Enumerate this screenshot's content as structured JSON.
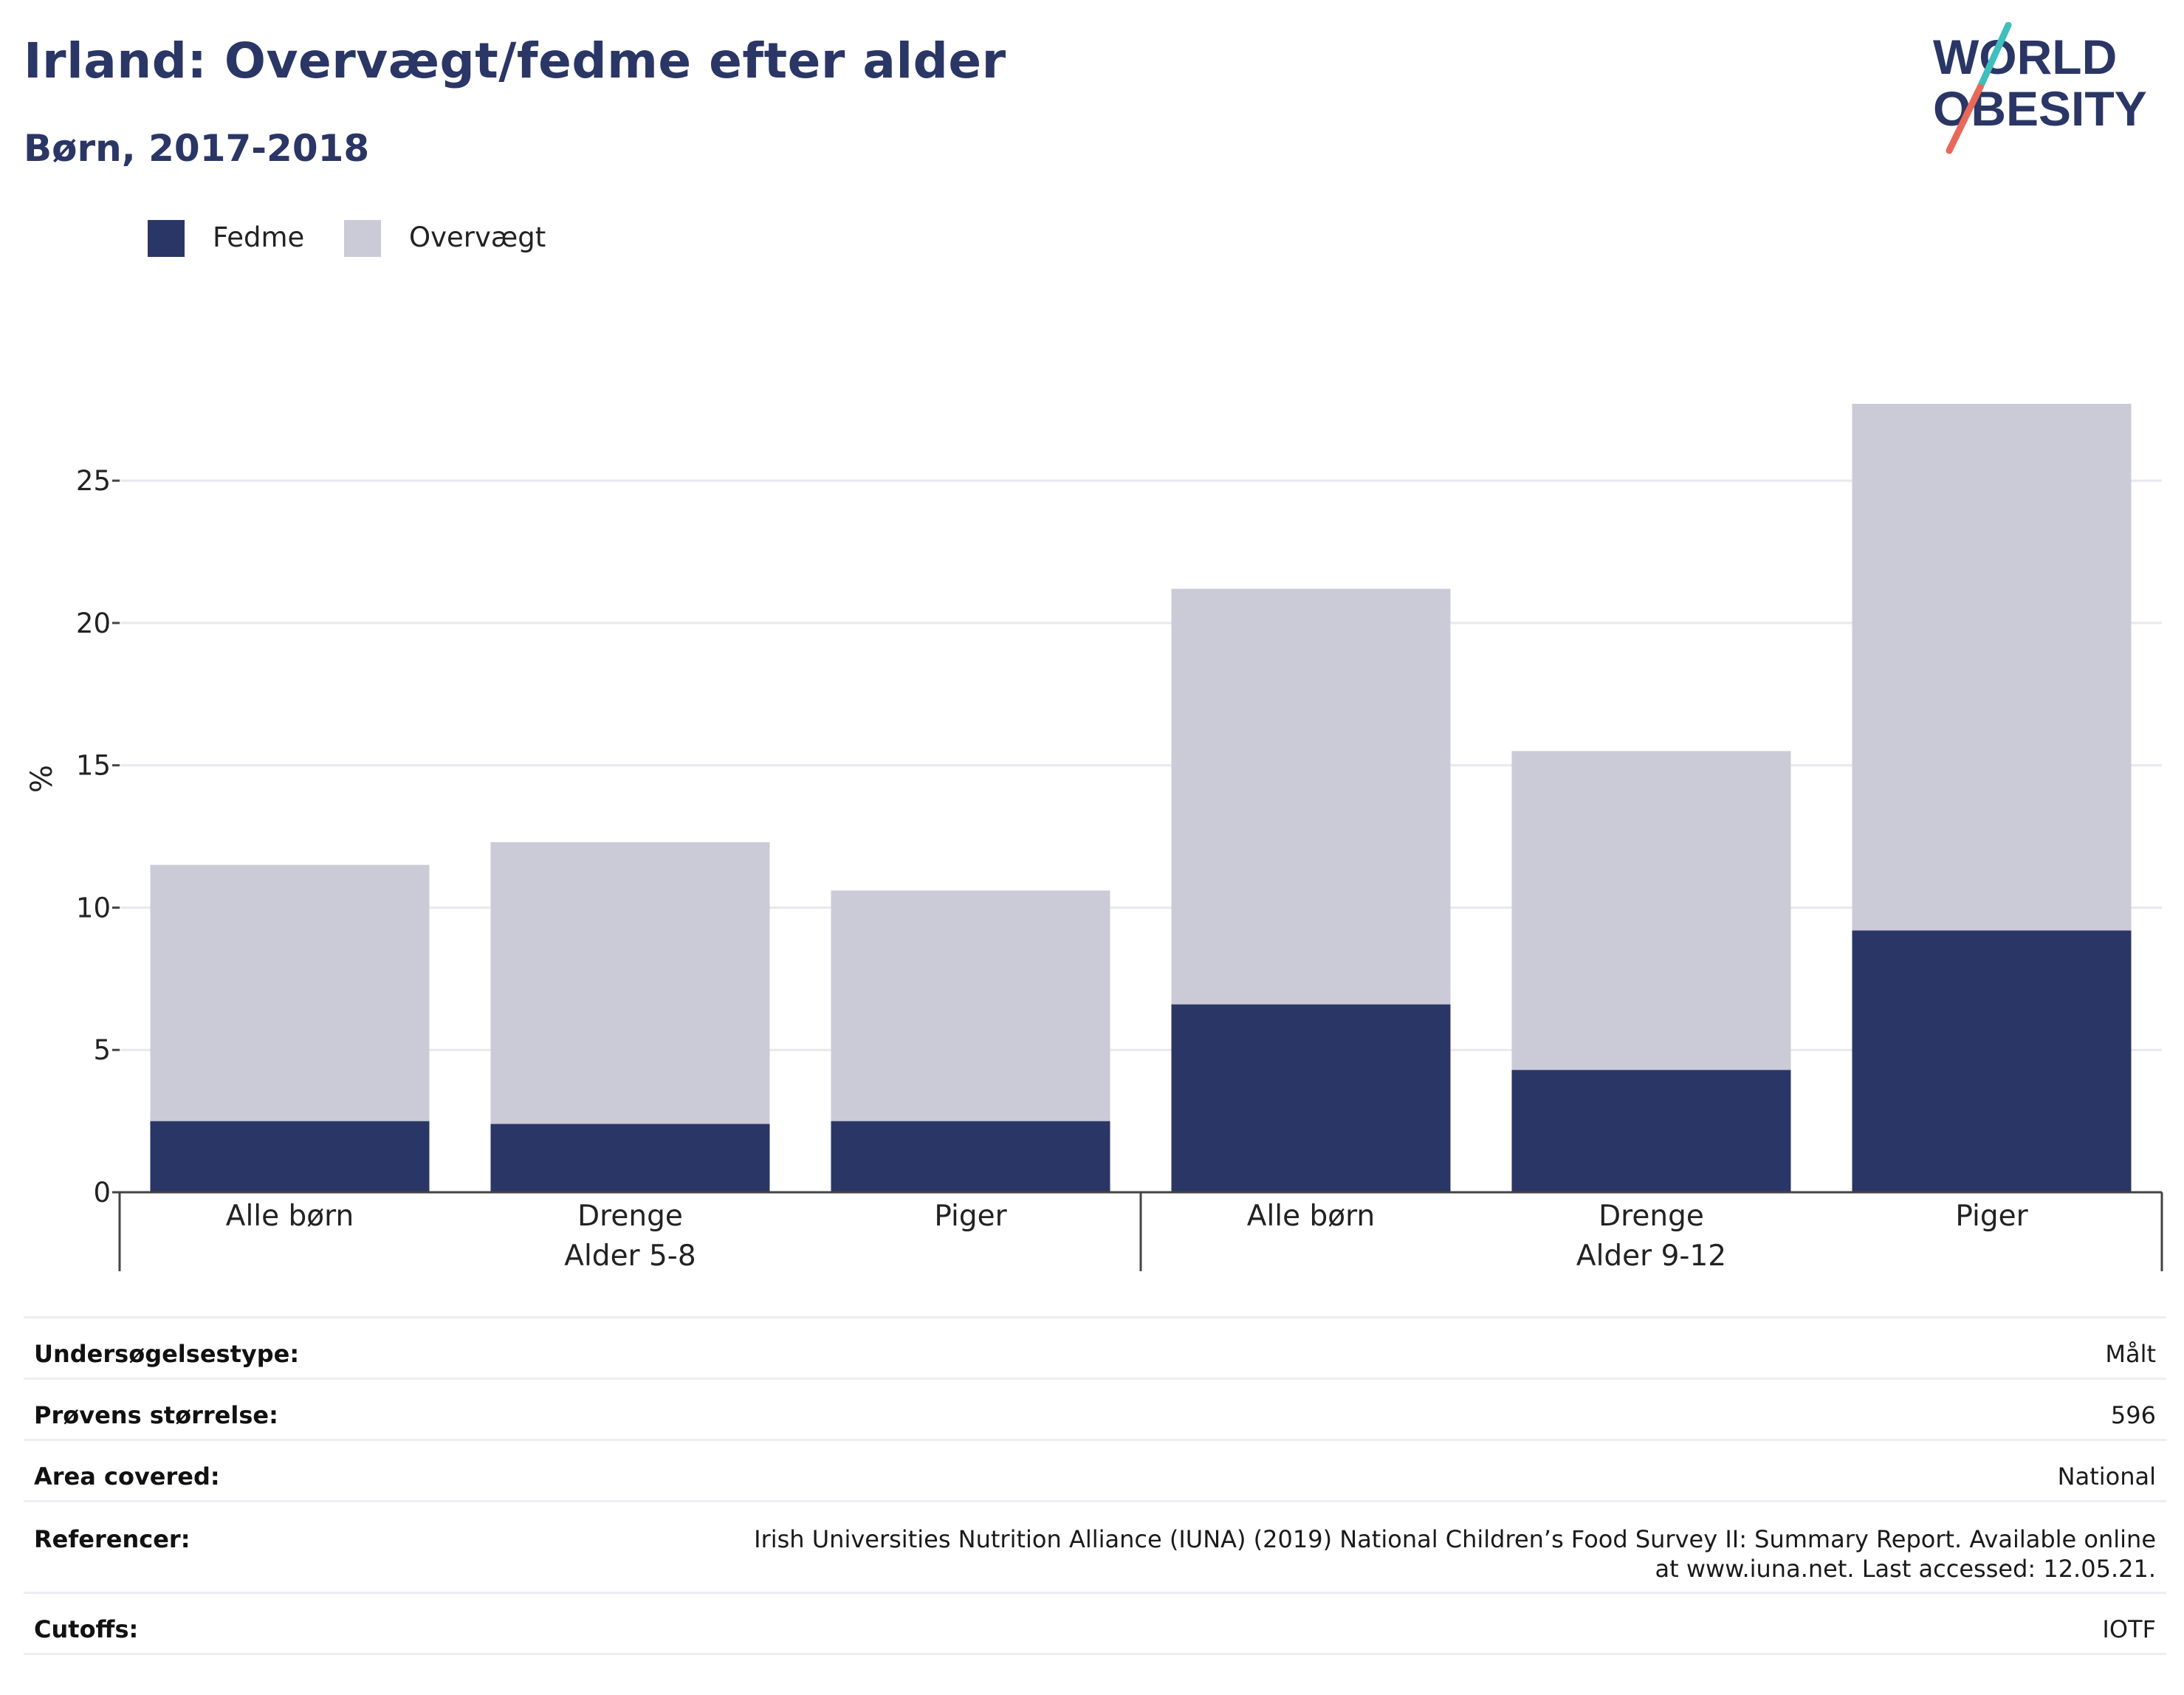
{
  "title": "Irland: Overvægt/fedme efter alder",
  "subtitle": "Børn, 2017-2018",
  "logo": {
    "line1": "WORLD",
    "line2": "OBESITY",
    "accent_colors": [
      "#3dbfbe",
      "#e8685a"
    ]
  },
  "legend": [
    {
      "label": "Fedme",
      "color": "#2a3665"
    },
    {
      "label": "Overvægt",
      "color": "#cacbd7"
    }
  ],
  "chart_data": {
    "type": "bar",
    "stacked": true,
    "ylabel": "%",
    "ylim": [
      0,
      27.7
    ],
    "yticks": [
      0,
      5,
      10,
      15,
      20,
      25
    ],
    "grid": true,
    "legend_position": "top-left",
    "groups": [
      {
        "label": "Alder 5-8",
        "categories": [
          "Alle børn",
          "Drenge",
          "Piger"
        ]
      },
      {
        "label": "Alder 9-12",
        "categories": [
          "Alle børn",
          "Drenge",
          "Piger"
        ]
      }
    ],
    "categories": [
      "Alle børn",
      "Drenge",
      "Piger",
      "Alle børn",
      "Drenge",
      "Piger"
    ],
    "series": [
      {
        "name": "Fedme",
        "color": "#2a3665",
        "values": [
          2.5,
          2.4,
          2.5,
          6.6,
          4.3,
          9.2
        ]
      },
      {
        "name": "Overvægt",
        "color": "#cacbd7",
        "values": [
          9.0,
          9.9,
          8.1,
          14.6,
          11.2,
          18.5
        ]
      }
    ]
  },
  "meta": [
    {
      "key": "Undersøgelsestype:",
      "value": "Målt"
    },
    {
      "key": "Prøvens størrelse:",
      "value": "596"
    },
    {
      "key": "Area covered:",
      "value": "National"
    },
    {
      "key": "Referencer:",
      "value": "Irish Universities Nutrition Alliance (IUNA) (2019) National Children’s Food Survey II: Summary Report. Available online at www.iuna.net. Last accessed: 12.05.21."
    },
    {
      "key": "Cutoffs:",
      "value": "IOTF"
    }
  ]
}
